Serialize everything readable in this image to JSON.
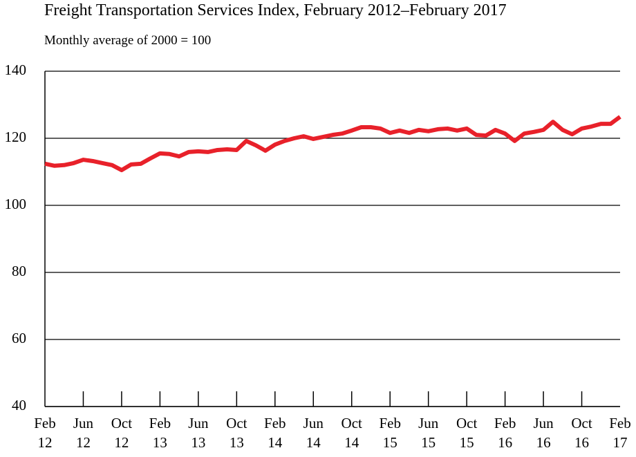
{
  "chart_data": {
    "type": "line",
    "title": "Freight Transportation Services Index, February 2012–February 2017",
    "subtitle": "Monthly average of 2000 = 100",
    "categories": [
      "Feb\n12",
      null,
      null,
      null,
      "Jun\n12",
      null,
      null,
      null,
      "Oct\n12",
      null,
      null,
      null,
      "Feb\n13",
      null,
      null,
      null,
      "Jun\n13",
      null,
      null,
      null,
      "Oct\n13",
      null,
      null,
      null,
      "Feb\n14",
      null,
      null,
      null,
      "Jun\n14",
      null,
      null,
      null,
      "Oct\n14",
      null,
      null,
      null,
      "Feb\n15",
      null,
      null,
      null,
      "Jun\n15",
      null,
      null,
      null,
      "Oct\n15",
      null,
      null,
      null,
      "Feb\n16",
      null,
      null,
      null,
      "Jun\n16",
      null,
      null,
      null,
      "Oct\n16",
      null,
      null,
      null,
      "Feb\n17"
    ],
    "series": [
      {
        "color": "#e8212a",
        "values": [
          112.4,
          111.8,
          112,
          112.6,
          113.6,
          113.2,
          112.6,
          112,
          110.5,
          112.2,
          112.4,
          114,
          115.5,
          115.3,
          114.6,
          115.9,
          116.1,
          115.9,
          116.5,
          116.7,
          116.5,
          119.2,
          117.9,
          116.3,
          118.1,
          119.2,
          120,
          120.6,
          119.8,
          120.4,
          121,
          121.4,
          122.3,
          123.3,
          123.3,
          122.9,
          121.6,
          122.3,
          121.6,
          122.5,
          122.1,
          122.7,
          122.9,
          122.3,
          122.9,
          121,
          120.8,
          122.5,
          121.4,
          119.2,
          121.4,
          121.9,
          122.5,
          124.9,
          122.5,
          121.2,
          122.9,
          123.5,
          124.3,
          124.3,
          126.4
        ]
      }
    ],
    "ylim": [
      40,
      140
    ],
    "yticks": [
      40,
      60,
      80,
      100,
      120,
      140
    ],
    "grid": true
  }
}
